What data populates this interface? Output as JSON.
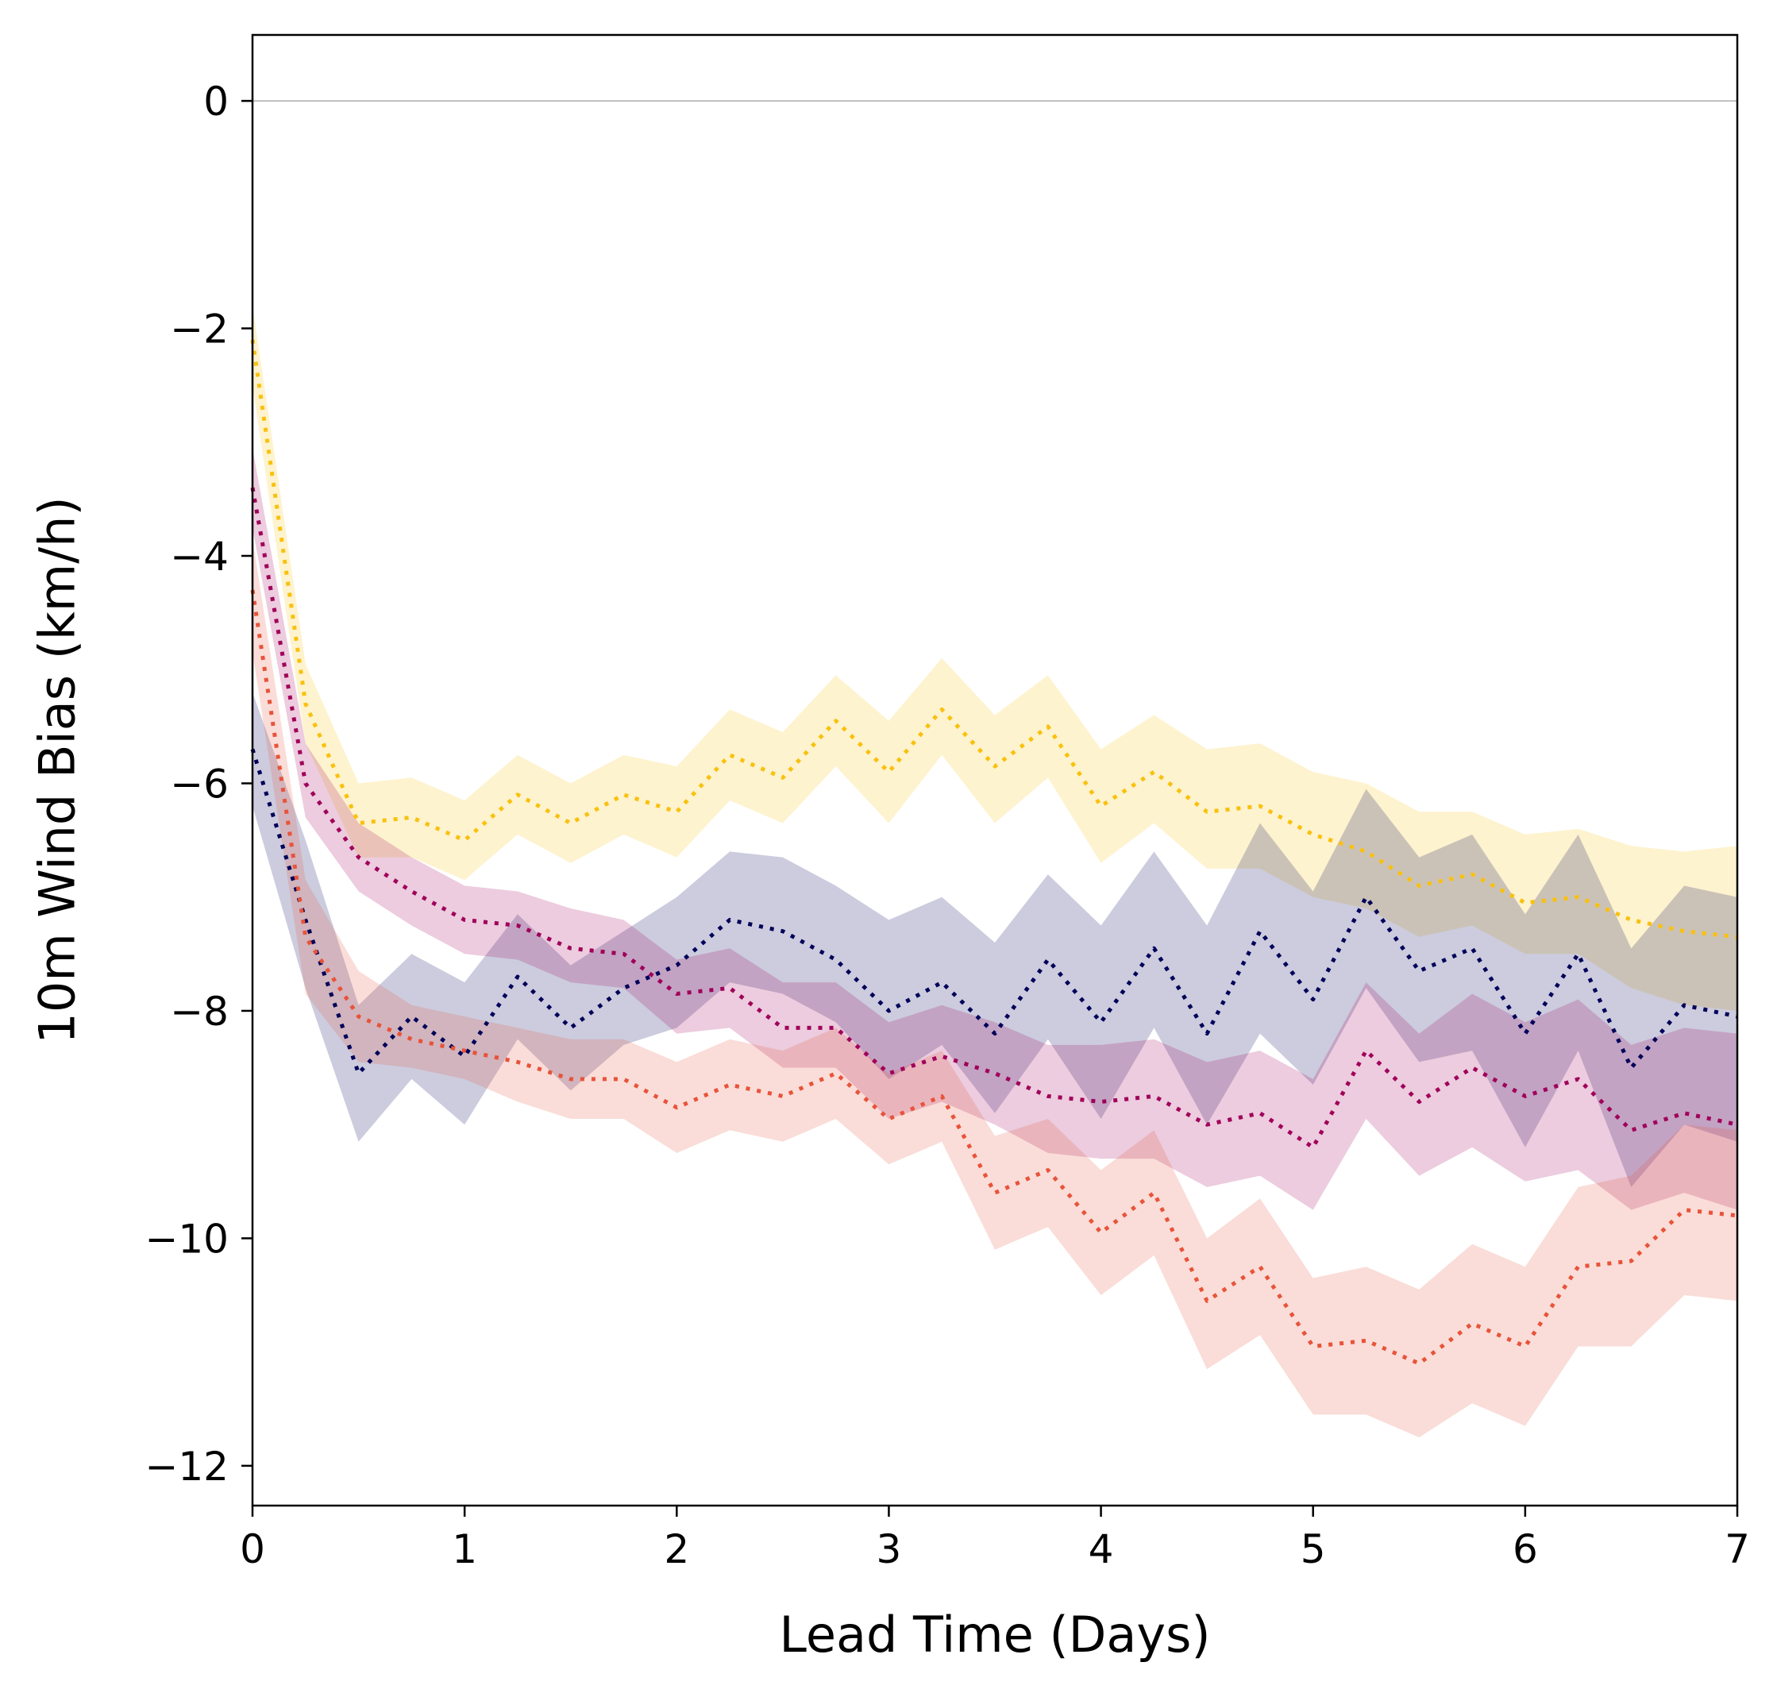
{
  "chart_data": {
    "type": "line",
    "title": "",
    "xlabel": "Lead Time (Days)",
    "ylabel": "10m Wind Bias (km/h)",
    "xlim": [
      0,
      7
    ],
    "ylim": [
      -12.35,
      0.58
    ],
    "xticks": [
      0,
      1,
      2,
      3,
      4,
      5,
      6,
      7
    ],
    "yticks": [
      0,
      -2,
      -4,
      -6,
      -8,
      -10,
      -12
    ],
    "ytick_labels": [
      "0",
      "−2",
      "−4",
      "−6",
      "−8",
      "−10",
      "−12"
    ],
    "grid": false,
    "legend": "none",
    "reference_line": {
      "y": 0,
      "color": "#bfbfbf"
    },
    "line_style": "dotted",
    "x": [
      0,
      0.25,
      0.5,
      0.75,
      1,
      1.25,
      1.5,
      1.75,
      2,
      2.25,
      2.5,
      2.75,
      3,
      3.25,
      3.5,
      3.75,
      4,
      4.25,
      4.5,
      4.75,
      5,
      5.25,
      5.5,
      5.75,
      6,
      6.25,
      6.5,
      6.75,
      7
    ],
    "series": [
      {
        "color": "#f9c10e",
        "values": [
          -2.1,
          -5.3,
          -6.35,
          -6.3,
          -6.5,
          -6.1,
          -6.35,
          -6.1,
          -6.25,
          -5.75,
          -5.95,
          -5.45,
          -5.9,
          -5.35,
          -5.85,
          -5.5,
          -6.2,
          -5.9,
          -6.25,
          -6.2,
          -6.45,
          -6.6,
          -6.9,
          -6.8,
          -7.05,
          -7.0,
          -7.2,
          -7.3,
          -7.35
        ],
        "lower": [
          -2.5,
          -5.65,
          -6.65,
          -6.65,
          -6.85,
          -6.45,
          -6.7,
          -6.45,
          -6.65,
          -6.15,
          -6.35,
          -5.85,
          -6.35,
          -5.75,
          -6.35,
          -5.95,
          -6.7,
          -6.35,
          -6.75,
          -6.75,
          -7.0,
          -7.1,
          -7.35,
          -7.25,
          -7.5,
          -7.5,
          -7.8,
          -7.95,
          -8.0
        ],
        "upper": [
          -1.8,
          -4.95,
          -6.0,
          -5.95,
          -6.15,
          -5.75,
          -6.0,
          -5.75,
          -5.85,
          -5.35,
          -5.55,
          -5.05,
          -5.45,
          -4.9,
          -5.4,
          -5.05,
          -5.7,
          -5.4,
          -5.7,
          -5.65,
          -5.9,
          -6.0,
          -6.25,
          -6.25,
          -6.45,
          -6.4,
          -6.55,
          -6.6,
          -6.55
        ]
      },
      {
        "color": "#000059",
        "values": [
          -5.7,
          -7.2,
          -8.55,
          -8.05,
          -8.4,
          -7.7,
          -8.15,
          -7.8,
          -7.6,
          -7.2,
          -7.3,
          -7.55,
          -8.0,
          -7.75,
          -8.2,
          -7.55,
          -8.1,
          -7.45,
          -8.2,
          -7.3,
          -7.9,
          -7.0,
          -7.65,
          -7.45,
          -8.2,
          -7.5,
          -8.5,
          -7.95,
          -8.05
        ],
        "lower": [
          -6.2,
          -7.8,
          -9.15,
          -8.6,
          -9.0,
          -8.25,
          -8.7,
          -8.3,
          -8.15,
          -7.75,
          -7.85,
          -8.1,
          -8.6,
          -8.3,
          -8.9,
          -8.25,
          -8.95,
          -8.15,
          -9.0,
          -8.2,
          -8.65,
          -7.8,
          -8.45,
          -8.35,
          -9.2,
          -8.35,
          -9.55,
          -9.0,
          -9.15
        ],
        "upper": [
          -5.2,
          -6.5,
          -7.95,
          -7.5,
          -7.75,
          -7.15,
          -7.6,
          -7.3,
          -7.0,
          -6.6,
          -6.65,
          -6.9,
          -7.2,
          -7.0,
          -7.4,
          -6.8,
          -7.25,
          -6.6,
          -7.25,
          -6.35,
          -6.95,
          -6.05,
          -6.65,
          -6.45,
          -7.15,
          -6.45,
          -7.45,
          -6.9,
          -7.0
        ]
      },
      {
        "color": "#a0005a",
        "values": [
          -3.4,
          -6.0,
          -6.65,
          -6.95,
          -7.2,
          -7.25,
          -7.45,
          -7.5,
          -7.85,
          -7.8,
          -8.15,
          -8.15,
          -8.55,
          -8.4,
          -8.55,
          -8.75,
          -8.8,
          -8.75,
          -9.0,
          -8.9,
          -9.2,
          -8.35,
          -8.8,
          -8.5,
          -8.75,
          -8.6,
          -9.05,
          -8.9,
          -9.0
        ],
        "lower": [
          -3.75,
          -6.3,
          -6.95,
          -7.25,
          -7.5,
          -7.55,
          -7.75,
          -7.8,
          -8.2,
          -8.15,
          -8.5,
          -8.5,
          -8.95,
          -8.8,
          -9.0,
          -9.25,
          -9.3,
          -9.3,
          -9.55,
          -9.45,
          -9.75,
          -8.95,
          -9.45,
          -9.2,
          -9.5,
          -9.4,
          -9.75,
          -9.6,
          -9.75
        ],
        "upper": [
          -3.05,
          -5.65,
          -6.35,
          -6.65,
          -6.9,
          -6.95,
          -7.1,
          -7.2,
          -7.55,
          -7.45,
          -7.75,
          -7.75,
          -8.1,
          -7.95,
          -8.1,
          -8.3,
          -8.3,
          -8.25,
          -8.45,
          -8.35,
          -8.6,
          -7.75,
          -8.2,
          -7.85,
          -8.1,
          -7.9,
          -8.3,
          -8.15,
          -8.2
        ]
      },
      {
        "color": "#e8533a",
        "values": [
          -4.3,
          -7.35,
          -8.05,
          -8.25,
          -8.35,
          -8.45,
          -8.6,
          -8.6,
          -8.85,
          -8.65,
          -8.75,
          -8.55,
          -8.95,
          -8.75,
          -9.6,
          -9.4,
          -9.95,
          -9.6,
          -10.55,
          -10.25,
          -10.95,
          -10.9,
          -11.1,
          -10.75,
          -10.95,
          -10.25,
          -10.2,
          -9.75,
          -9.8
        ],
        "lower": [
          -4.85,
          -7.85,
          -8.45,
          -8.5,
          -8.6,
          -8.8,
          -8.95,
          -8.95,
          -9.25,
          -9.05,
          -9.15,
          -8.95,
          -9.35,
          -9.15,
          -10.1,
          -9.9,
          -10.5,
          -10.15,
          -11.15,
          -10.85,
          -11.55,
          -11.55,
          -11.75,
          -11.45,
          -11.65,
          -10.95,
          -10.95,
          -10.5,
          -10.55
        ],
        "upper": [
          -3.85,
          -6.85,
          -7.65,
          -7.95,
          -8.05,
          -8.15,
          -8.25,
          -8.25,
          -8.45,
          -8.25,
          -8.35,
          -8.15,
          -8.55,
          -8.35,
          -9.1,
          -8.95,
          -9.4,
          -9.05,
          -10.0,
          -9.65,
          -10.35,
          -10.25,
          -10.45,
          -10.05,
          -10.25,
          -9.55,
          -9.45,
          -9.0,
          -9.05
        ]
      }
    ]
  }
}
